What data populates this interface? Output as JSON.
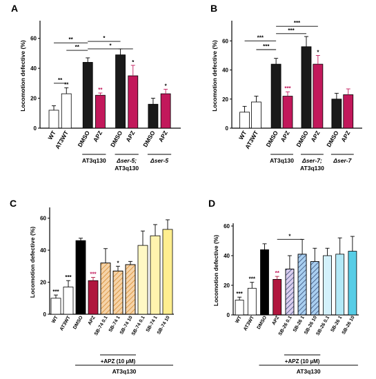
{
  "chart_data": [
    {
      "panel": "A",
      "type": "bar",
      "ylabel": "Locomotion defective (%)",
      "ylim": [
        0,
        70
      ],
      "yticks": [
        0,
        20,
        40,
        60
      ],
      "categories": [
        "WT",
        "AT3WT",
        "DMSO",
        "APZ",
        "DMSO",
        "APZ",
        "DMSO",
        "APZ"
      ],
      "values": [
        12,
        23,
        44,
        22,
        49,
        35,
        16,
        23
      ],
      "errors": [
        3,
        4,
        3,
        1.5,
        4,
        7,
        4,
        3
      ],
      "significance": [
        "",
        "**",
        "",
        "**",
        "",
        "*",
        "",
        "*"
      ],
      "colors": [
        "#ffffff",
        "#ffffff",
        "#1a1a1a",
        "#c2185b",
        "#1a1a1a",
        "#c2185b",
        "#1a1a1a",
        "#c2185b"
      ],
      "groups": [
        {
          "label": "AT3q130",
          "from": 2,
          "to": 3
        },
        {
          "label": "Δser-5;",
          "label2": "AT3q130",
          "from": 4,
          "to": 5
        },
        {
          "label": "Δser-5",
          "from": 6,
          "to": 7
        }
      ],
      "brackets": [
        {
          "from": 0,
          "to": 1,
          "text": "**",
          "y": 30
        },
        {
          "from": 0,
          "to": 2,
          "text": "**",
          "y": 57
        },
        {
          "from": 1,
          "to": 2,
          "text": "**",
          "y": 52
        },
        {
          "from": 2,
          "to": 4,
          "text": "*",
          "y": 58
        },
        {
          "from": 2,
          "to": 5,
          "text": "*",
          "y": 53
        }
      ]
    },
    {
      "panel": "B",
      "type": "bar",
      "ylabel": "Locomotion defective (%)",
      "ylim": [
        0,
        72
      ],
      "yticks": [
        0,
        20,
        40,
        60
      ],
      "categories": [
        "WT",
        "AT3WT",
        "DMSO",
        "APZ",
        "DMSO",
        "APZ",
        "DMSO",
        "APZ"
      ],
      "values": [
        11,
        18,
        44,
        22,
        56,
        44,
        20,
        23
      ],
      "errors": [
        4,
        4,
        4,
        3,
        7,
        6,
        4,
        4
      ],
      "significance": [
        "",
        "",
        "",
        "***",
        "",
        "*",
        "",
        ""
      ],
      "colors": [
        "#ffffff",
        "#ffffff",
        "#1a1a1a",
        "#c2185b",
        "#1a1a1a",
        "#c2185b",
        "#1a1a1a",
        "#c2185b"
      ],
      "groups": [
        {
          "label": "AT3q130",
          "from": 2,
          "to": 3
        },
        {
          "label": "Δser-7;",
          "label2": "AT3q130",
          "from": 4,
          "to": 5
        },
        {
          "label": "Δser-7",
          "from": 6,
          "to": 7
        }
      ],
      "brackets": [
        {
          "from": 0,
          "to": 2,
          "text": "***",
          "y": 60
        },
        {
          "from": 1,
          "to": 2,
          "text": "***",
          "y": 54
        },
        {
          "from": 2,
          "to": 4,
          "text": "***",
          "y": 65
        },
        {
          "from": 2,
          "to": 5,
          "text": "***",
          "y": 70
        }
      ]
    },
    {
      "panel": "C",
      "type": "bar",
      "ylabel": "Locomotion defective (%)",
      "ylim": [
        0,
        65
      ],
      "yticks": [
        0,
        20,
        40,
        60
      ],
      "categories": [
        "WT",
        "AT3WT",
        "DMSO",
        "APZ",
        "SB-74 0.1",
        "SB-74 1",
        "SB-74 10",
        "SB-74 0.1",
        "SB-74 1",
        "SB-74 10"
      ],
      "values": [
        10,
        17,
        46,
        21,
        32,
        27,
        31,
        43,
        49,
        53
      ],
      "errors": [
        2,
        4,
        1.5,
        2,
        9,
        3,
        2,
        9,
        7,
        6
      ],
      "significance": [
        "***",
        "***",
        "",
        "***",
        "",
        "*",
        "",
        "",
        "",
        ""
      ],
      "colors": [
        "#ffffff",
        "#ffffff",
        "#000000",
        "#b0173e",
        "#f5d3a8",
        "#f5d3a8",
        "#f5d3a8",
        "#fff8c4",
        "#fff3ae",
        "#ffee8f"
      ],
      "hatched": [
        false,
        false,
        false,
        false,
        true,
        true,
        true,
        false,
        false,
        false
      ],
      "hatch_color": "#d58a2e",
      "subgroup_label": "+APZ (10 µM)",
      "subgroup_from": 4,
      "subgroup_to": 6,
      "group_label": "AT3q130",
      "group_from": 2,
      "group_to": 9
    },
    {
      "panel": "D",
      "type": "bar",
      "ylabel": "Locomotion defective (%)",
      "ylim": [
        0,
        60
      ],
      "yticks": [
        0,
        20,
        40,
        60
      ],
      "categories": [
        "WT",
        "AT3WT",
        "DMSO",
        "APZ",
        "SB-26 0.1",
        "SB-26 1",
        "SB-26 10",
        "SB-26 0.1",
        "SB-26 1",
        "SB-26 10"
      ],
      "values": [
        10,
        18,
        44,
        24,
        31,
        41,
        36,
        40,
        41,
        43
      ],
      "errors": [
        2,
        4,
        4,
        2,
        9,
        10,
        9,
        5,
        11,
        10
      ],
      "significance": [
        "***",
        "***",
        "",
        "**",
        "",
        "",
        "",
        "",
        "",
        ""
      ],
      "colors": [
        "#ffffff",
        "#ffffff",
        "#000000",
        "#b0173e",
        "#d9ccee",
        "#a9cff0",
        "#a9cff0",
        "#d3f1fb",
        "#b3e9f7",
        "#57cde6"
      ],
      "hatched": [
        false,
        false,
        false,
        false,
        true,
        true,
        true,
        false,
        false,
        false
      ],
      "hatch_color": "#3a4f7a",
      "subgroup_label": "+APZ (10 µM)",
      "subgroup_from": 4,
      "subgroup_to": 6,
      "group_label": "AT3q130",
      "group_from": 2,
      "group_to": 9,
      "brackets": [
        {
          "from": 3,
          "to": 5,
          "text": "*",
          "y": 51
        }
      ]
    }
  ]
}
